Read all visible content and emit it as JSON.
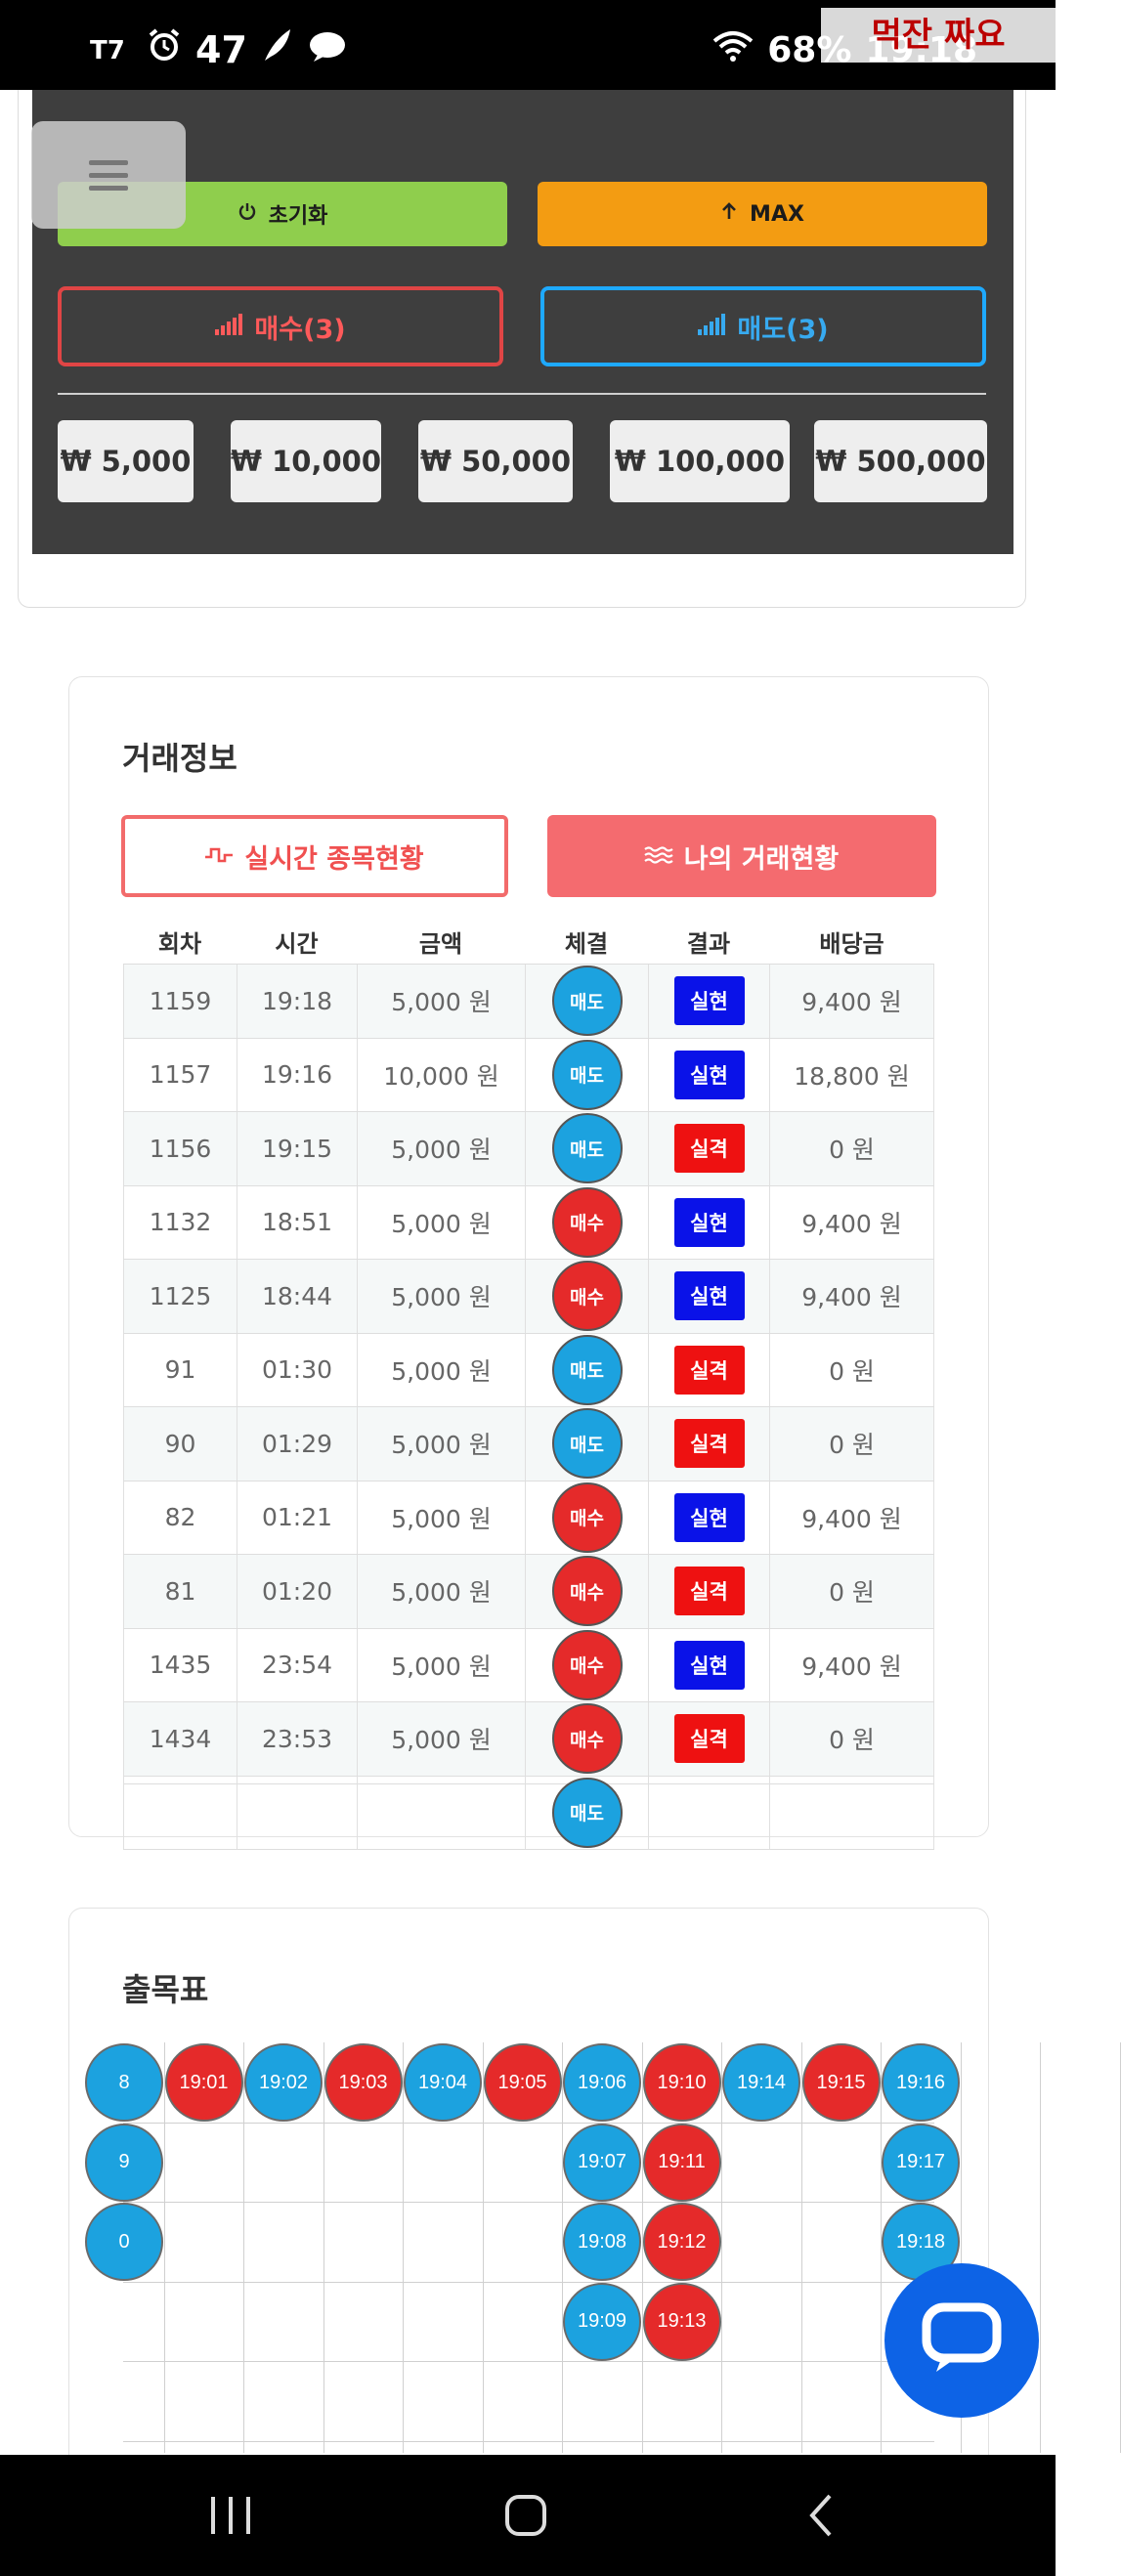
{
  "status_bar": {
    "left_text": "47",
    "battery": "68%",
    "time": "19:18",
    "watermark": "먹잔 짜요"
  },
  "trade_panel": {
    "reset_label": "초기화",
    "max_label": "MAX",
    "buy_label": "매수(3)",
    "sell_label": "매도(3)",
    "amounts": [
      "₩ 5,000",
      "₩ 10,000",
      "₩ 50,000",
      "₩ 100,000",
      "₩ 500,000"
    ]
  },
  "trade_info": {
    "title": "거래정보",
    "tab_live": "실시간 종목현황",
    "tab_mine": "나의 거래현황",
    "headers": [
      "회차",
      "시간",
      "금액",
      "체결",
      "결과",
      "배당금"
    ],
    "rows": [
      {
        "round": "1159",
        "time": "19:18",
        "amount": "5,000 원",
        "exec": "매도",
        "result": "실현",
        "payout": "9,400 원"
      },
      {
        "round": "1157",
        "time": "19:16",
        "amount": "10,000 원",
        "exec": "매도",
        "result": "실현",
        "payout": "18,800 원"
      },
      {
        "round": "1156",
        "time": "19:15",
        "amount": "5,000 원",
        "exec": "매도",
        "result": "실격",
        "payout": "0 원"
      },
      {
        "round": "1132",
        "time": "18:51",
        "amount": "5,000 원",
        "exec": "매수",
        "result": "실현",
        "payout": "9,400 원"
      },
      {
        "round": "1125",
        "time": "18:44",
        "amount": "5,000 원",
        "exec": "매수",
        "result": "실현",
        "payout": "9,400 원"
      },
      {
        "round": "91",
        "time": "01:30",
        "amount": "5,000 원",
        "exec": "매도",
        "result": "실격",
        "payout": "0 원"
      },
      {
        "round": "90",
        "time": "01:29",
        "amount": "5,000 원",
        "exec": "매도",
        "result": "실격",
        "payout": "0 원"
      },
      {
        "round": "82",
        "time": "01:21",
        "amount": "5,000 원",
        "exec": "매수",
        "result": "실현",
        "payout": "9,400 원"
      },
      {
        "round": "81",
        "time": "01:20",
        "amount": "5,000 원",
        "exec": "매수",
        "result": "실격",
        "payout": "0 원"
      },
      {
        "round": "1435",
        "time": "23:54",
        "amount": "5,000 원",
        "exec": "매수",
        "result": "실현",
        "payout": "9,400 원"
      },
      {
        "round": "1434",
        "time": "23:53",
        "amount": "5,000 원",
        "exec": "매수",
        "result": "실격",
        "payout": "0 원"
      },
      {
        "round": "",
        "time": "",
        "amount": "",
        "exec": "매도",
        "result": "",
        "payout": ""
      }
    ]
  },
  "result_chart": {
    "title": "출목표",
    "columns": [
      {
        "color": "blue",
        "cells": [
          "8",
          "9",
          "0"
        ]
      },
      {
        "color": "red",
        "cells": [
          "19:01"
        ]
      },
      {
        "color": "blue",
        "cells": [
          "19:02"
        ]
      },
      {
        "color": "red",
        "cells": [
          "19:03"
        ]
      },
      {
        "color": "blue",
        "cells": [
          "19:04"
        ]
      },
      {
        "color": "red",
        "cells": [
          "19:05"
        ]
      },
      {
        "color": "blue",
        "cells": [
          "19:06",
          "19:07",
          "19:08",
          "19:09"
        ]
      },
      {
        "color": "red",
        "cells": [
          "19:10",
          "19:11",
          "19:12",
          "19:13"
        ]
      },
      {
        "color": "blue",
        "cells": [
          "19:14"
        ]
      },
      {
        "color": "red",
        "cells": [
          "19:15"
        ]
      },
      {
        "color": "blue",
        "cells": [
          "19:16",
          "19:17",
          "19:18"
        ]
      }
    ]
  },
  "colors": {
    "buy_red": "#e52a2a",
    "sell_blue": "#1ca2df",
    "realized_blue": "#0a12e8",
    "failed_red": "#ee1111"
  }
}
